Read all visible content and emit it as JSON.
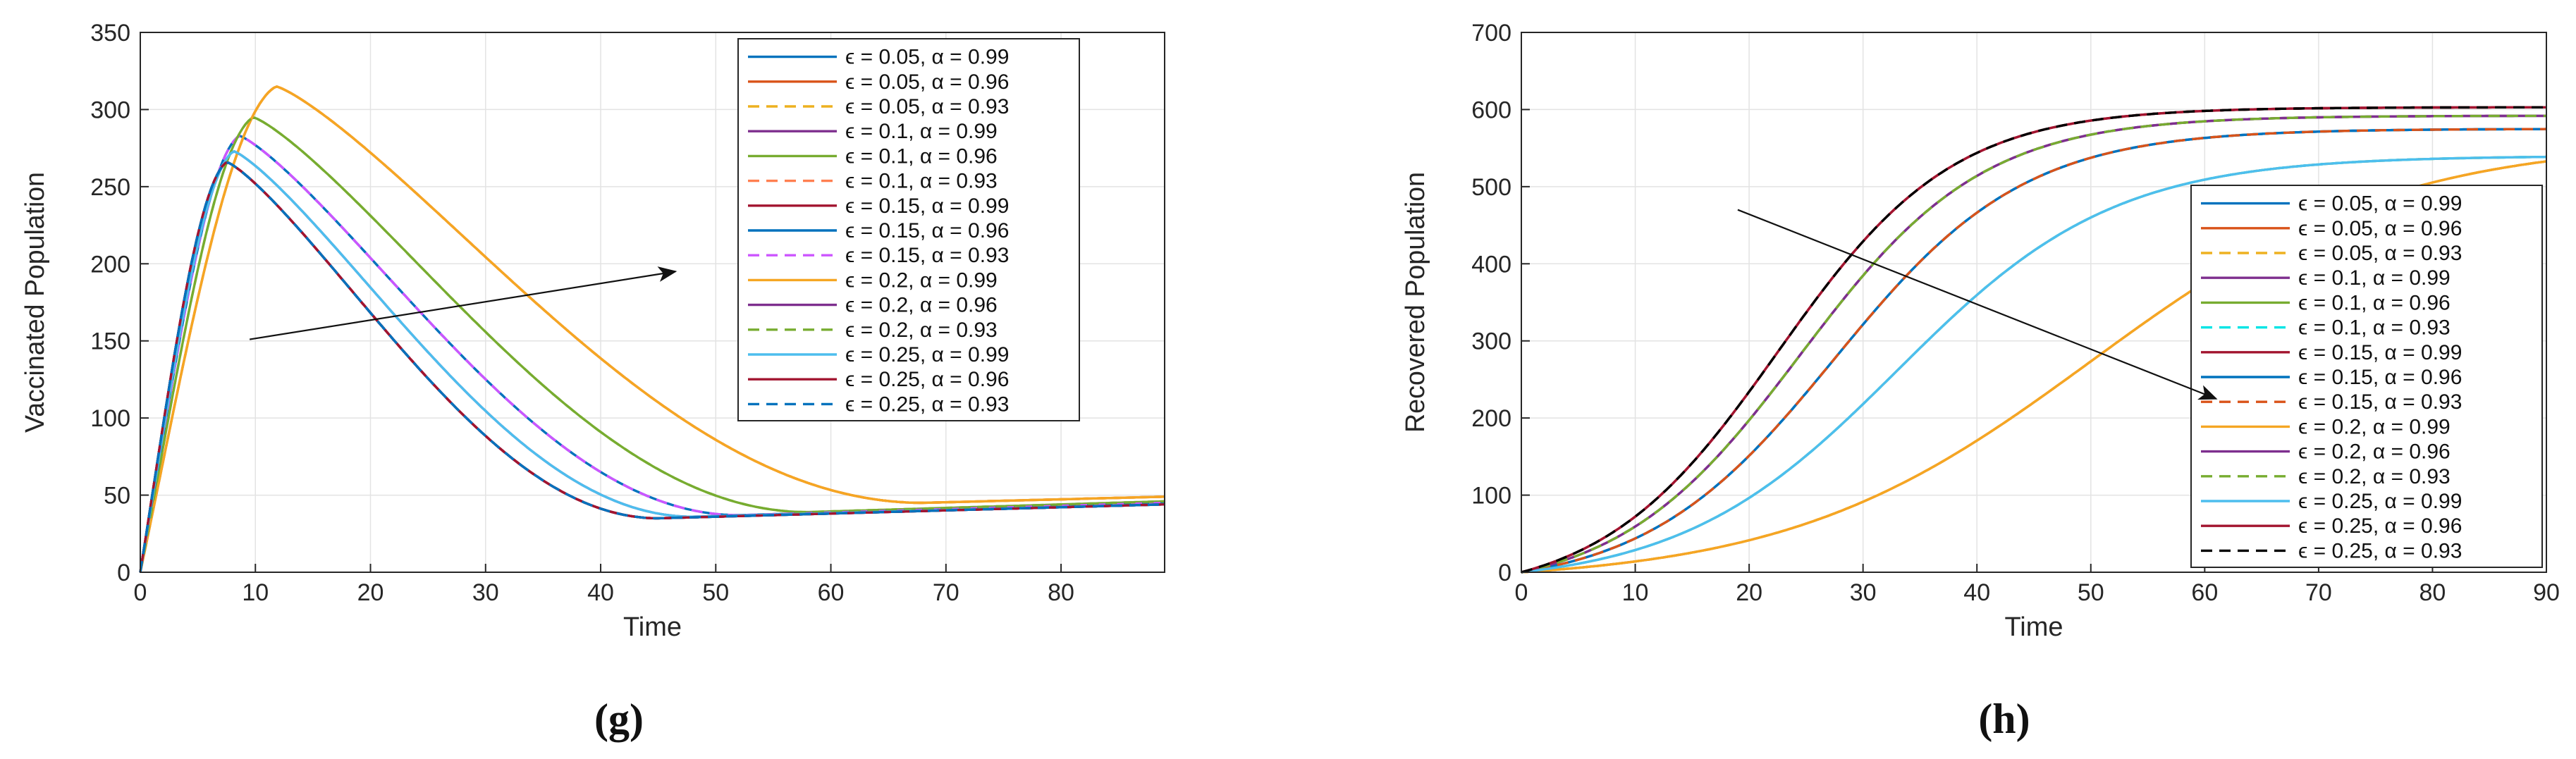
{
  "chart_data": [
    {
      "panel_label": "(g)",
      "type": "line",
      "xlabel": "Time",
      "ylabel": "Vaccinated Population",
      "xlim": [
        0,
        89
      ],
      "ylim": [
        0,
        350
      ],
      "xticks": [
        0,
        10,
        20,
        30,
        40,
        50,
        60,
        70,
        80
      ],
      "yticks": [
        0,
        50,
        100,
        150,
        200,
        250,
        300,
        350
      ],
      "grid": true,
      "legend_position": "top-right",
      "annotation_arrow": {
        "from": [
          9.5,
          151
        ],
        "to": [
          46.5,
          195
        ]
      },
      "curve_model": {
        "family": "rise-peak-decay",
        "note": "x = Time, y = Vaccinated Population"
      },
      "series": [
        {
          "name": "ϵ = 0.05, α = 0.99",
          "color": "#0072BD",
          "dash": "solid",
          "peak_time": 7.5,
          "peak": 266,
          "trough_time": 45,
          "trough": 35,
          "end": 44
        },
        {
          "name": "ϵ = 0.05, α = 0.96",
          "color": "#D95319",
          "dash": "solid",
          "peak_time": 11.8,
          "peak": 315,
          "trough_time": 68,
          "trough": 45,
          "end": 49
        },
        {
          "name": "ϵ = 0.05, α = 0.93",
          "color": "#EDB120",
          "dash": "dashed",
          "peak_time": 11.8,
          "peak": 315,
          "trough_time": 68,
          "trough": 45,
          "end": 49
        },
        {
          "name": "ϵ = 0.1, α = 0.99",
          "color": "#7E2F8E",
          "dash": "solid",
          "peak_time": 7.5,
          "peak": 266,
          "trough_time": 45,
          "trough": 35,
          "end": 44
        },
        {
          "name": "ϵ = 0.1, α = 0.96",
          "color": "#77AC30",
          "dash": "solid",
          "peak_time": 9.8,
          "peak": 295,
          "trough_time": 58,
          "trough": 39,
          "end": 46
        },
        {
          "name": "ϵ = 0.1, α = 0.93",
          "color": "#FF7F50",
          "dash": "dashed",
          "peak_time": 11.8,
          "peak": 315,
          "trough_time": 68,
          "trough": 45,
          "end": 49
        },
        {
          "name": "ϵ = 0.15, α = 0.99",
          "color": "#A2142F",
          "dash": "solid",
          "peak_time": 7.5,
          "peak": 266,
          "trough_time": 45,
          "trough": 35,
          "end": 44
        },
        {
          "name": "ϵ = 0.15, α = 0.96",
          "color": "#0072BD",
          "dash": "solid",
          "peak_time": 8.6,
          "peak": 283,
          "trough_time": 52,
          "trough": 37,
          "end": 45
        },
        {
          "name": "ϵ = 0.15, α = 0.93",
          "color": "#CC55FF",
          "dash": "dashed",
          "peak_time": 8.6,
          "peak": 283,
          "trough_time": 52,
          "trough": 37,
          "end": 45
        },
        {
          "name": "ϵ = 0.2, α = 0.99",
          "color": "#F5A623",
          "dash": "solid",
          "peak_time": 11.8,
          "peak": 315,
          "trough_time": 68,
          "trough": 45,
          "end": 49
        },
        {
          "name": "ϵ = 0.2, α = 0.96",
          "color": "#7E2F8E",
          "dash": "solid",
          "peak_time": 8.1,
          "peak": 273,
          "trough_time": 48,
          "trough": 36,
          "end": 44
        },
        {
          "name": "ϵ = 0.2, α = 0.93",
          "color": "#77AC30",
          "dash": "dashed",
          "peak_time": 9.8,
          "peak": 295,
          "trough_time": 58,
          "trough": 39,
          "end": 46
        },
        {
          "name": "ϵ = 0.25, α = 0.99",
          "color": "#4DBEEE",
          "dash": "solid",
          "peak_time": 8.1,
          "peak": 273,
          "trough_time": 48,
          "trough": 36,
          "end": 44
        },
        {
          "name": "ϵ = 0.25, α = 0.96",
          "color": "#A2142F",
          "dash": "solid",
          "peak_time": 7.5,
          "peak": 266,
          "trough_time": 45,
          "trough": 35,
          "end": 44
        },
        {
          "name": "ϵ = 0.25, α = 0.93",
          "color": "#0072BD",
          "dash": "dashed",
          "peak_time": 7.5,
          "peak": 266,
          "trough_time": 45,
          "trough": 35,
          "end": 44
        }
      ]
    },
    {
      "panel_label": "(h)",
      "type": "line",
      "xlabel": "Time",
      "ylabel": "Recovered Population",
      "xlim": [
        0,
        90
      ],
      "ylim": [
        0,
        700
      ],
      "xticks": [
        0,
        10,
        20,
        30,
        40,
        50,
        60,
        70,
        80,
        90
      ],
      "yticks": [
        0,
        100,
        200,
        300,
        400,
        500,
        600,
        700
      ],
      "grid": true,
      "legend_position": "right",
      "annotation_arrow": {
        "from": [
          19,
          470
        ],
        "to": [
          61,
          225
        ]
      },
      "curve_model": {
        "family": "logistic",
        "note": "x = Time, y = Recovered Population"
      },
      "series": [
        {
          "name": "ϵ = 0.05, α = 0.99",
          "color": "#0072BD",
          "dash": "solid",
          "final": 575,
          "midpoint": 27.5,
          "rate": 0.12
        },
        {
          "name": "ϵ = 0.05, α = 0.96",
          "color": "#D95319",
          "dash": "solid",
          "final": 560,
          "midpoint": 50,
          "rate": 0.075
        },
        {
          "name": "ϵ = 0.05, α = 0.93",
          "color": "#EDB120",
          "dash": "dashed",
          "final": 560,
          "midpoint": 50,
          "rate": 0.075
        },
        {
          "name": "ϵ = 0.1, α = 0.99",
          "color": "#7E2F8E",
          "dash": "solid",
          "final": 592,
          "midpoint": 24.5,
          "rate": 0.125
        },
        {
          "name": "ϵ = 0.1, α = 0.96",
          "color": "#77AC30",
          "dash": "solid",
          "final": 540,
          "midpoint": 33,
          "rate": 0.105
        },
        {
          "name": "ϵ = 0.1, α = 0.93",
          "color": "#00E5E5",
          "dash": "dashed",
          "final": 540,
          "midpoint": 33,
          "rate": 0.105
        },
        {
          "name": "ϵ = 0.15, α = 0.99",
          "color": "#A2142F",
          "dash": "solid",
          "final": 603,
          "midpoint": 22.5,
          "rate": 0.13
        },
        {
          "name": "ϵ = 0.15, α = 0.96",
          "color": "#0072BD",
          "dash": "solid",
          "final": 575,
          "midpoint": 27.5,
          "rate": 0.12
        },
        {
          "name": "ϵ = 0.15, α = 0.93",
          "color": "#D95319",
          "dash": "dashed",
          "final": 575,
          "midpoint": 27.5,
          "rate": 0.12
        },
        {
          "name": "ϵ = 0.2, α = 0.99",
          "color": "#F5A623",
          "dash": "solid",
          "final": 560,
          "midpoint": 50,
          "rate": 0.075
        },
        {
          "name": "ϵ = 0.2, α = 0.96",
          "color": "#7E2F8E",
          "dash": "solid",
          "final": 592,
          "midpoint": 24.5,
          "rate": 0.125
        },
        {
          "name": "ϵ = 0.2, α = 0.93",
          "color": "#77AC30",
          "dash": "dashed",
          "final": 592,
          "midpoint": 24.5,
          "rate": 0.125
        },
        {
          "name": "ϵ = 0.25, α = 0.99",
          "color": "#4DBEEE",
          "dash": "solid",
          "final": 540,
          "midpoint": 33,
          "rate": 0.105
        },
        {
          "name": "ϵ = 0.25, α = 0.96",
          "color": "#A2142F",
          "dash": "solid",
          "final": 603,
          "midpoint": 22.5,
          "rate": 0.13
        },
        {
          "name": "ϵ = 0.25, α = 0.93",
          "color": "#000000",
          "dash": "dashed",
          "final": 603,
          "midpoint": 22.5,
          "rate": 0.13
        }
      ]
    }
  ]
}
